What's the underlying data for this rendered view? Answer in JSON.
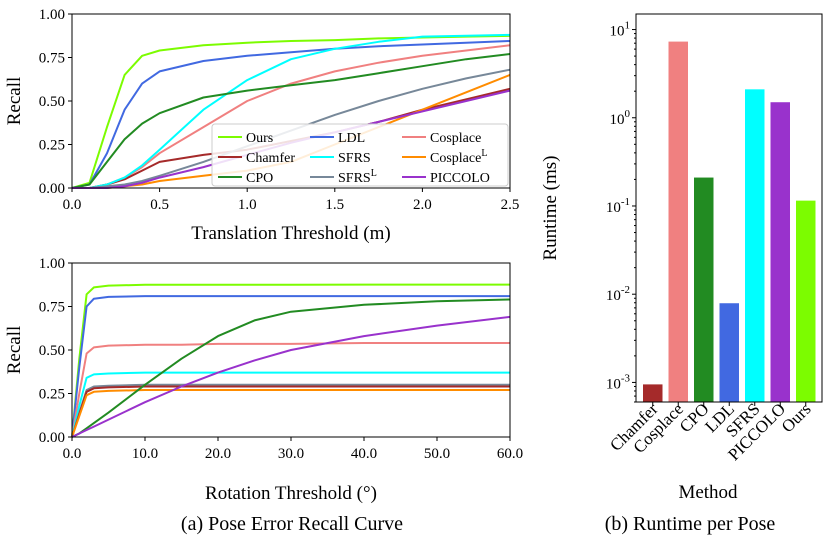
{
  "chart_data": [
    {
      "type": "line",
      "title": "",
      "xlabel": "Translation Threshold (m)",
      "ylabel": "Recall",
      "xlim": [
        0,
        2.5
      ],
      "ylim": [
        0,
        1
      ],
      "x_ticks": [
        "0.0",
        "0.5",
        "1.0",
        "1.5",
        "2.0",
        "2.5"
      ],
      "y_ticks": [
        "0.00",
        "0.25",
        "0.50",
        "0.75",
        "1.00"
      ],
      "x": [
        0,
        0.1,
        0.2,
        0.3,
        0.4,
        0.5,
        0.75,
        1.0,
        1.25,
        1.5,
        1.75,
        2.0,
        2.25,
        2.5
      ],
      "series": [
        {
          "name": "Ours",
          "color": "#7cfc00",
          "values": [
            0,
            0.03,
            0.35,
            0.65,
            0.76,
            0.79,
            0.82,
            0.835,
            0.845,
            0.85,
            0.86,
            0.865,
            0.87,
            0.875
          ]
        },
        {
          "name": "LDL",
          "color": "#4169e1",
          "values": [
            0,
            0.02,
            0.2,
            0.45,
            0.6,
            0.67,
            0.73,
            0.76,
            0.78,
            0.8,
            0.815,
            0.825,
            0.835,
            0.845
          ]
        },
        {
          "name": "Cosplace",
          "color": "#f08080",
          "values": [
            0,
            0,
            0.02,
            0.06,
            0.12,
            0.2,
            0.35,
            0.5,
            0.6,
            0.67,
            0.72,
            0.76,
            0.79,
            0.82
          ]
        },
        {
          "name": "Chamfer",
          "color": "#a52a2a",
          "values": [
            0,
            0,
            0.02,
            0.05,
            0.1,
            0.15,
            0.19,
            0.22,
            0.27,
            0.32,
            0.38,
            0.45,
            0.51,
            0.57
          ]
        },
        {
          "name": "SFRS",
          "color": "#00ffff",
          "values": [
            0,
            0,
            0.02,
            0.06,
            0.13,
            0.22,
            0.45,
            0.62,
            0.74,
            0.8,
            0.84,
            0.87,
            0.875,
            0.88
          ]
        },
        {
          "name": "Cosplace^L",
          "color": "#ff8c00",
          "values": [
            0,
            0,
            0,
            0.01,
            0.02,
            0.04,
            0.07,
            0.1,
            0.15,
            0.25,
            0.35,
            0.45,
            0.55,
            0.65
          ]
        },
        {
          "name": "CPO",
          "color": "#228b22",
          "values": [
            0,
            0.02,
            0.15,
            0.28,
            0.37,
            0.43,
            0.52,
            0.56,
            0.59,
            0.62,
            0.66,
            0.7,
            0.74,
            0.77
          ]
        },
        {
          "name": "SFRS^L",
          "color": "#778899",
          "values": [
            0,
            0,
            0.01,
            0.02,
            0.04,
            0.07,
            0.15,
            0.24,
            0.33,
            0.42,
            0.5,
            0.57,
            0.63,
            0.68
          ]
        },
        {
          "name": "PICCOLO",
          "color": "#9932cc",
          "values": [
            0,
            0,
            0,
            0.01,
            0.03,
            0.06,
            0.12,
            0.19,
            0.26,
            0.32,
            0.38,
            0.44,
            0.5,
            0.56
          ]
        }
      ],
      "legend": [
        {
          "label": "Ours",
          "sup": "",
          "color": "#7cfc00"
        },
        {
          "label": "LDL",
          "sup": "",
          "color": "#4169e1"
        },
        {
          "label": "Cosplace",
          "sup": "",
          "color": "#f08080"
        },
        {
          "label": "Chamfer",
          "sup": "",
          "color": "#a52a2a"
        },
        {
          "label": "SFRS",
          "sup": "",
          "color": "#00ffff"
        },
        {
          "label": "Cosplace",
          "sup": "L",
          "color": "#ff8c00"
        },
        {
          "label": "CPO",
          "sup": "",
          "color": "#228b22"
        },
        {
          "label": "SFRS",
          "sup": "L",
          "color": "#778899"
        },
        {
          "label": "PICCOLO",
          "sup": "",
          "color": "#9932cc"
        }
      ],
      "legend_position": "lower-right"
    },
    {
      "type": "line",
      "title": "",
      "xlabel": "Rotation Threshold (°)",
      "ylabel": "Recall",
      "xlim": [
        0,
        60
      ],
      "ylim": [
        0,
        1
      ],
      "x_ticks": [
        "0.0",
        "10.0",
        "20.0",
        "30.0",
        "40.0",
        "50.0",
        "60.0"
      ],
      "y_ticks": [
        "0.00",
        "0.25",
        "0.50",
        "0.75",
        "1.00"
      ],
      "x": [
        0,
        1,
        2,
        3,
        5,
        10,
        15,
        20,
        25,
        30,
        40,
        50,
        60
      ],
      "series": [
        {
          "name": "Ours",
          "color": "#7cfc00",
          "values": [
            0,
            0.45,
            0.82,
            0.86,
            0.87,
            0.875,
            0.875,
            0.875,
            0.875,
            0.875,
            0.876,
            0.876,
            0.876
          ]
        },
        {
          "name": "LDL",
          "color": "#4169e1",
          "values": [
            0,
            0.4,
            0.75,
            0.795,
            0.805,
            0.81,
            0.81,
            0.81,
            0.81,
            0.81,
            0.81,
            0.81,
            0.81
          ]
        },
        {
          "name": "Cosplace",
          "color": "#f08080",
          "values": [
            0,
            0.25,
            0.48,
            0.515,
            0.525,
            0.53,
            0.53,
            0.535,
            0.535,
            0.535,
            0.54,
            0.54,
            0.54
          ]
        },
        {
          "name": "SFRS",
          "color": "#00ffff",
          "values": [
            0,
            0.18,
            0.34,
            0.36,
            0.365,
            0.37,
            0.37,
            0.37,
            0.37,
            0.37,
            0.37,
            0.37,
            0.37
          ]
        },
        {
          "name": "SFRS^L",
          "color": "#778899",
          "values": [
            0,
            0.14,
            0.27,
            0.29,
            0.295,
            0.3,
            0.3,
            0.3,
            0.3,
            0.3,
            0.3,
            0.3,
            0.3
          ]
        },
        {
          "name": "Chamfer",
          "color": "#a52a2a",
          "values": [
            0,
            0.13,
            0.26,
            0.28,
            0.285,
            0.29,
            0.29,
            0.29,
            0.29,
            0.29,
            0.29,
            0.29,
            0.29
          ]
        },
        {
          "name": "Cosplace^L",
          "color": "#ff8c00",
          "values": [
            0,
            0.12,
            0.24,
            0.26,
            0.265,
            0.27,
            0.27,
            0.27,
            0.27,
            0.27,
            0.27,
            0.27,
            0.27
          ]
        },
        {
          "name": "CPO",
          "color": "#228b22",
          "values": [
            0,
            0.02,
            0.05,
            0.08,
            0.14,
            0.3,
            0.45,
            0.58,
            0.67,
            0.72,
            0.76,
            0.78,
            0.79
          ]
        },
        {
          "name": "PICCOLO",
          "color": "#9932cc",
          "values": [
            0,
            0.02,
            0.04,
            0.06,
            0.1,
            0.2,
            0.29,
            0.37,
            0.44,
            0.5,
            0.58,
            0.64,
            0.69
          ]
        }
      ]
    },
    {
      "type": "bar",
      "title": "",
      "xlabel": "Method",
      "ylabel": "Runtime (ms)",
      "yscale": "log",
      "ylim": [
        0.0006,
        15
      ],
      "y_ticks": [
        {
          "base": "10",
          "exp": "1",
          "value": 10
        },
        {
          "base": "10",
          "exp": "0",
          "value": 1
        },
        {
          "base": "10",
          "exp": "-1",
          "value": 0.1
        },
        {
          "base": "10",
          "exp": "-2",
          "value": 0.01
        },
        {
          "base": "10",
          "exp": "-3",
          "value": 0.001
        }
      ],
      "categories": [
        "Chamfer",
        "Cosplace",
        "CPO",
        "LDL",
        "SFRS",
        "PICCOLO",
        "Ours"
      ],
      "values": [
        0.00095,
        7.3,
        0.21,
        0.0079,
        2.1,
        1.5,
        0.115
      ],
      "colors": [
        "#a52a2a",
        "#f08080",
        "#228b22",
        "#4169e1",
        "#00ffff",
        "#9932cc",
        "#7cfc00"
      ]
    }
  ],
  "captions": {
    "left": "(a) Pose Error Recall Curve",
    "right": "(b) Runtime per Pose"
  }
}
